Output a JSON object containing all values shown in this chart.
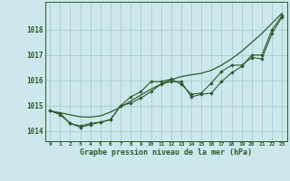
{
  "title": "Graphe pression niveau de la mer (hPa)",
  "bg_color": "#cce8ec",
  "grid_color": "#aacccc",
  "line_color": "#2d5a2d",
  "x_labels": [
    "0",
    "1",
    "2",
    "3",
    "4",
    "5",
    "6",
    "7",
    "8",
    "9",
    "10",
    "11",
    "12",
    "13",
    "14",
    "15",
    "16",
    "17",
    "18",
    "19",
    "20",
    "21",
    "22",
    "23"
  ],
  "ylim": [
    1013.6,
    1019.1
  ],
  "yticks": [
    1014,
    1015,
    1016,
    1017,
    1018
  ],
  "smooth_line": [
    1014.8,
    1014.72,
    1014.64,
    1014.56,
    1014.55,
    1014.6,
    1014.75,
    1014.95,
    1015.18,
    1015.42,
    1015.65,
    1015.85,
    1016.02,
    1016.15,
    1016.22,
    1016.28,
    1016.4,
    1016.6,
    1016.85,
    1017.15,
    1017.5,
    1017.85,
    1018.25,
    1018.65
  ],
  "line1": [
    1014.8,
    1014.7,
    1014.3,
    1014.2,
    1014.3,
    1014.35,
    1014.45,
    1015.0,
    1015.1,
    1015.3,
    1015.55,
    1015.85,
    1015.95,
    1015.95,
    1015.35,
    1015.45,
    1015.5,
    1015.95,
    1016.3,
    1016.55,
    1017.0,
    1017.0,
    1018.0,
    1018.55
  ],
  "line2": [
    1014.8,
    1014.65,
    1014.3,
    1014.15,
    1014.25,
    1014.35,
    1014.45,
    1015.0,
    1015.35,
    1015.55,
    1015.95,
    1015.95,
    1016.05,
    1015.85,
    1015.45,
    1015.5,
    1015.9,
    1016.35,
    1016.6,
    1016.6,
    1016.9,
    1016.85,
    1017.85,
    1018.5
  ]
}
